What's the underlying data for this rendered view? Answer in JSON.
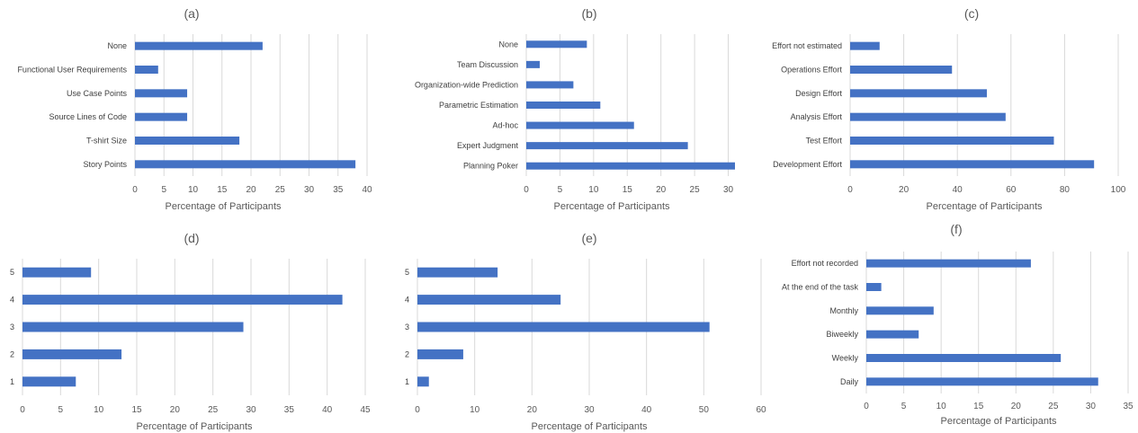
{
  "colors": {
    "bar": "#4472c4",
    "grid": "#d9d9d9",
    "text": "#595959"
  },
  "chart_data": [
    {
      "type": "bar",
      "orientation": "horizontal",
      "title": "(a)",
      "xlabel": "Percentage of Participants",
      "categories": [
        "None",
        "Functional User Requirements",
        "Use Case Points",
        "Source Lines of Code",
        "T-shirt Size",
        "Story Points"
      ],
      "values": [
        22,
        4,
        9,
        9,
        18,
        38
      ],
      "xlim": [
        0,
        40
      ],
      "xticks": [
        0,
        5,
        10,
        15,
        20,
        25,
        30,
        35,
        40
      ],
      "grid": true
    },
    {
      "type": "bar",
      "orientation": "horizontal",
      "title": "(b)",
      "xlabel": "Percentage of Participants",
      "categories": [
        "None",
        "Team Discussion",
        "Organization-wide Prediction",
        "Parametric Estimation",
        "Ad-hoc",
        "Expert Judgment",
        "Planning Poker"
      ],
      "values": [
        9,
        2,
        7,
        11,
        16,
        24,
        31
      ],
      "xlim": [
        0,
        31
      ],
      "xticks": [
        0,
        5,
        10,
        15,
        20,
        25,
        30
      ],
      "grid": true
    },
    {
      "type": "bar",
      "orientation": "horizontal",
      "title": "(c)",
      "xlabel": "Percentage of Participants",
      "categories": [
        "Effort not estimated",
        "Operations Effort",
        "Design Effort",
        "Analysis Effort",
        "Test Effort",
        "Development Effort"
      ],
      "values": [
        11,
        38,
        51,
        58,
        76,
        91
      ],
      "xlim": [
        0,
        100
      ],
      "xticks": [
        0,
        20,
        40,
        60,
        80,
        100
      ],
      "grid": true
    },
    {
      "type": "bar",
      "orientation": "horizontal",
      "title": "(d)",
      "xlabel": "Percentage of Participants",
      "categories": [
        "5",
        "4",
        "3",
        "2",
        "1"
      ],
      "values": [
        9,
        42,
        29,
        13,
        7
      ],
      "xlim": [
        0,
        45
      ],
      "xticks": [
        0,
        5,
        10,
        15,
        20,
        25,
        30,
        35,
        40,
        45
      ],
      "grid": true
    },
    {
      "type": "bar",
      "orientation": "horizontal",
      "title": "(e)",
      "xlabel": "Percentage of Participants",
      "categories": [
        "5",
        "4",
        "3",
        "2",
        "1"
      ],
      "values": [
        14,
        25,
        51,
        8,
        2
      ],
      "xlim": [
        0,
        60
      ],
      "xticks": [
        0,
        10,
        20,
        30,
        40,
        50,
        60
      ],
      "grid": true
    },
    {
      "type": "bar",
      "orientation": "horizontal",
      "title": "(f)",
      "xlabel": "Percentage of Participants",
      "categories": [
        "Effort not recorded",
        "At the end of the task",
        "Monthly",
        "Biweekly",
        "Weekly",
        "Daily"
      ],
      "values": [
        22,
        2,
        9,
        7,
        26,
        31
      ],
      "xlim": [
        0,
        35
      ],
      "xticks": [
        0,
        5,
        10,
        15,
        20,
        25,
        30,
        35
      ],
      "grid": true
    }
  ]
}
